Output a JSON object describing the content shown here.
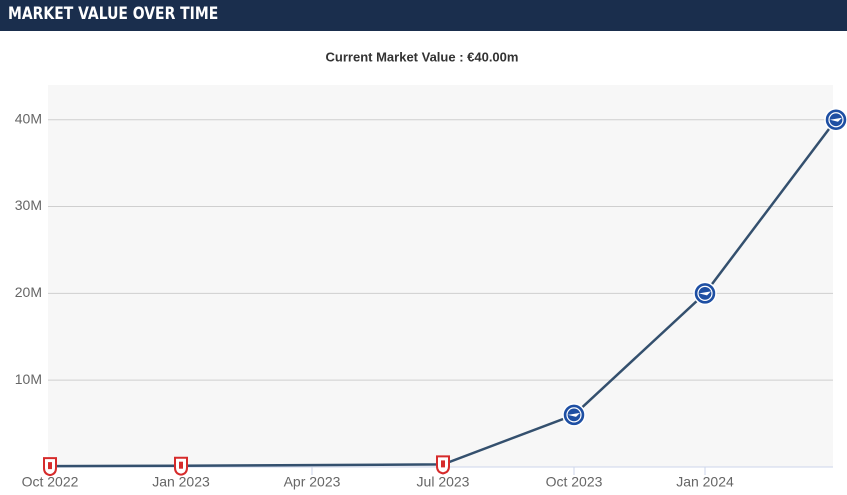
{
  "header": {
    "title": "MARKET VALUE OVER TIME"
  },
  "chart_data": {
    "type": "line",
    "title": "Current Market Value : €40.00m",
    "x": [
      "2022-10",
      "2023-01",
      "2023-07",
      "2023-10",
      "2024-01",
      "2024-04"
    ],
    "series": [
      {
        "color": "#34506e",
        "values": [
          100000,
          150000,
          300000,
          6000000,
          20000000,
          40000000
        ],
        "marker_colors": [
          "#d62b2b",
          "#d62b2b",
          "#d62b2b",
          "#1e4fa3",
          "#1e4fa3",
          "#1e4fa3"
        ]
      }
    ],
    "xlim": [
      "2022-10",
      "2024-04"
    ],
    "xticks": [
      {
        "value": "2022-10",
        "label": "Oct 2022"
      },
      {
        "value": "2023-01",
        "label": "Jan 2023"
      },
      {
        "value": "2023-04",
        "label": "Apr 2023"
      },
      {
        "value": "2023-07",
        "label": "Jul 2023"
      },
      {
        "value": "2023-10",
        "label": "Oct 2023"
      },
      {
        "value": "2024-01",
        "label": "Jan 2024"
      }
    ],
    "ylim": [
      0,
      44000000
    ],
    "yticks": [
      {
        "value": 10000000,
        "label": "10M"
      },
      {
        "value": 20000000,
        "label": "20M"
      },
      {
        "value": 30000000,
        "label": "30M"
      },
      {
        "value": 40000000,
        "label": "40M"
      }
    ],
    "grid": true
  }
}
